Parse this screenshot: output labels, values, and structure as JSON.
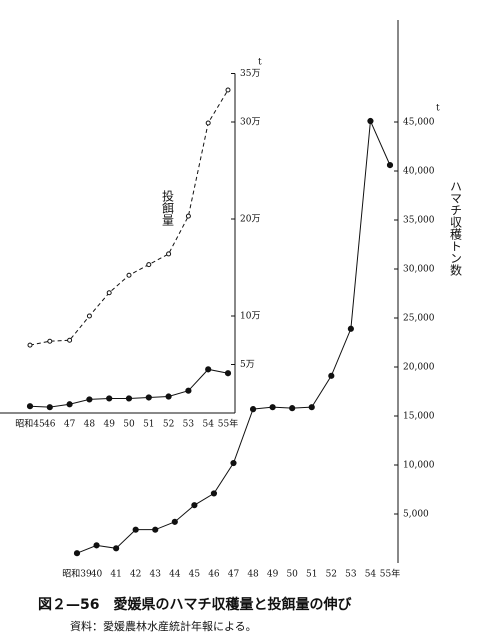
{
  "chart_data": [
    {
      "type": "line",
      "y_label": "ハマチ収穫トン数",
      "y_unit": "t",
      "categories": [
        "昭和39",
        "40",
        "41",
        "42",
        "43",
        "44",
        "45",
        "46",
        "47",
        "48",
        "49",
        "50",
        "51",
        "52",
        "53",
        "54",
        "55年"
      ],
      "series": [
        {
          "color": "#111111",
          "dashed": false,
          "marker": "filled",
          "values": [
            1000,
            1800,
            1500,
            3400,
            3400,
            4200,
            5900,
            7100,
            10200,
            15700,
            15900,
            15800,
            15900,
            19100,
            23900,
            45100,
            40600
          ]
        }
      ],
      "ylim": [
        0,
        55000
      ],
      "yticks": [
        {
          "value": 5000,
          "label": "5,000"
        },
        {
          "value": 10000,
          "label": "10,000"
        },
        {
          "value": 15000,
          "label": "15,000"
        },
        {
          "value": 20000,
          "label": "20,000"
        },
        {
          "value": 25000,
          "label": "25,000"
        },
        {
          "value": 30000,
          "label": "30,000"
        },
        {
          "value": 35000,
          "label": "35,000"
        },
        {
          "value": 40000,
          "label": "40,000"
        },
        {
          "value": 45000,
          "label": "45,000"
        }
      ]
    },
    {
      "type": "line",
      "y_unit": "t",
      "categories": [
        "昭和45",
        "46",
        "47",
        "48",
        "49",
        "50",
        "51",
        "52",
        "53",
        "54",
        "55年"
      ],
      "series": [
        {
          "name": "投餌量",
          "color": "#111111",
          "dashed": true,
          "marker": "open",
          "values": [
            7.0,
            7.4,
            7.5,
            10.0,
            12.4,
            14.2,
            15.3,
            16.4,
            20.3,
            29.9,
            33.3
          ]
        },
        {
          "color": "#111111",
          "dashed": false,
          "marker": "filled",
          "values": [
            0.7,
            0.6,
            0.9,
            1.4,
            1.5,
            1.5,
            1.6,
            1.7,
            2.3,
            4.5,
            4.1
          ]
        }
      ],
      "ylim": [
        0,
        35
      ],
      "yticks": [
        {
          "value": 5,
          "label": "5万"
        },
        {
          "value": 10,
          "label": "10万"
        },
        {
          "value": 20,
          "label": "20万"
        },
        {
          "value": 30,
          "label": "30万"
        },
        {
          "value": 35,
          "label": "35万"
        }
      ]
    }
  ],
  "figure": {
    "title": "図２—56　愛媛県のハマチ収穫量と投餌量の伸び",
    "source": "資料：愛媛農林水産統計年報による。"
  }
}
